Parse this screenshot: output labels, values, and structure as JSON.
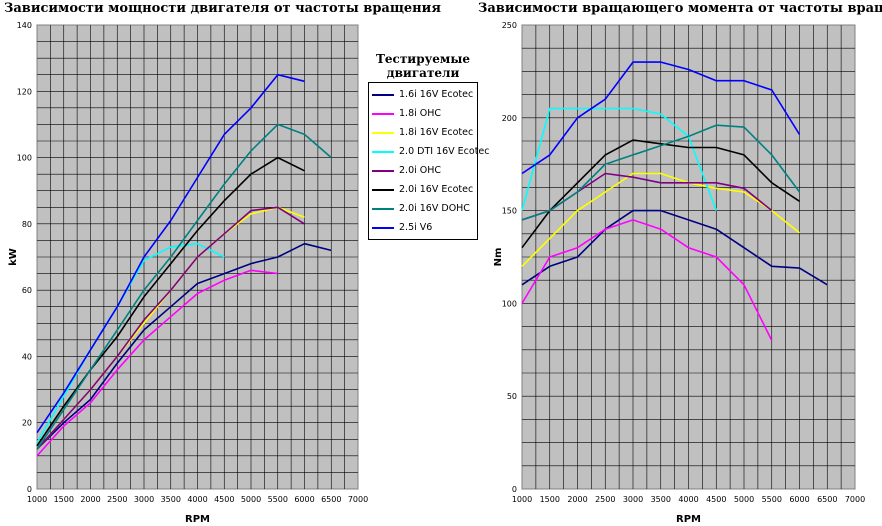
{
  "titles": {
    "left": "Зависимости мощности двигателя от частоты вращения",
    "right": "Зависимости вращающего момента от частоты вращения"
  },
  "legend": {
    "title_line1": "Тестируемые",
    "title_line2": "двигатели"
  },
  "chart_data": [
    {
      "type": "line",
      "title": "Зависимости мощности двигателя от частоты вращения",
      "xlabel": "RPM",
      "ylabel": "kW",
      "xlim": [
        1000,
        7000
      ],
      "ylim": [
        0,
        140
      ],
      "xticks": [
        1000,
        1500,
        2000,
        2500,
        3000,
        3500,
        4000,
        4500,
        5000,
        5500,
        6000,
        6500,
        7000
      ],
      "yticks": [
        0,
        20,
        40,
        60,
        80,
        100,
        120,
        140
      ],
      "grid": true,
      "background": "#c0c0c0",
      "series": [
        {
          "name": "1.6i 16V Ecotec",
          "color": "#000080",
          "x": [
            1000,
            1500,
            2000,
            2500,
            3000,
            3500,
            4000,
            4500,
            5000,
            5500,
            6000,
            6500
          ],
          "y": [
            12,
            20,
            27,
            38,
            48,
            55,
            62,
            65,
            68,
            70,
            74,
            72
          ]
        },
        {
          "name": "1.8i OHC",
          "color": "#ff00ff",
          "x": [
            1000,
            1500,
            2000,
            2500,
            3000,
            3500,
            4000,
            4500,
            5000,
            5500
          ],
          "y": [
            10,
            19,
            26,
            36,
            45,
            52,
            59,
            63,
            66,
            65
          ]
        },
        {
          "name": "1.8i 16V Ecotec",
          "color": "#ffff00",
          "x": [
            1000,
            1500,
            2000,
            2500,
            3000,
            3500,
            4000,
            4500,
            5000,
            5500,
            6000
          ],
          "y": [
            12,
            21,
            30,
            40,
            50,
            60,
            70,
            77,
            83,
            85,
            82
          ]
        },
        {
          "name": "2.0 DTI 16V Ecotec",
          "color": "#00ffff",
          "x": [
            1000,
            1500,
            2000,
            2500,
            3000,
            3500,
            4000,
            4500
          ],
          "y": [
            14,
            28,
            42,
            55,
            69,
            73,
            74,
            70
          ]
        },
        {
          "name": "2.0i OHC",
          "color": "#800080",
          "x": [
            1000,
            1500,
            2000,
            2500,
            3000,
            3500,
            4000,
            4500,
            5000,
            5500,
            6000
          ],
          "y": [
            12,
            21,
            30,
            40,
            51,
            60,
            70,
            77,
            84,
            85,
            80
          ]
        },
        {
          "name": "2.0i 16V Ecotec",
          "color": "#000000",
          "x": [
            1000,
            1500,
            2000,
            2500,
            3000,
            3500,
            4000,
            4500,
            5000,
            5500,
            6000
          ],
          "y": [
            13,
            25,
            36,
            46,
            58,
            68,
            78,
            87,
            95,
            100,
            96
          ]
        },
        {
          "name": "2.0i 16V DOHC",
          "color": "#008080",
          "x": [
            1000,
            1500,
            2000,
            2500,
            3000,
            3500,
            4000,
            4500,
            5000,
            5500,
            6000,
            6500
          ],
          "y": [
            12,
            24,
            36,
            48,
            60,
            70,
            81,
            92,
            102,
            110,
            107,
            100
          ]
        },
        {
          "name": "2.5i V6",
          "color": "#0000ff",
          "x": [
            1000,
            1500,
            2000,
            2500,
            3000,
            3500,
            4000,
            4500,
            5000,
            5500,
            6000
          ],
          "y": [
            17,
            29,
            42,
            55,
            70,
            81,
            94,
            107,
            115,
            125,
            123
          ]
        }
      ]
    },
    {
      "type": "line",
      "title": "Зависимости вращающего момента от частоты вращения",
      "xlabel": "RPM",
      "ylabel": "Nm",
      "xlim": [
        1000,
        7000
      ],
      "ylim": [
        0,
        250
      ],
      "xticks": [
        1000,
        1500,
        2000,
        2500,
        3000,
        3500,
        4000,
        4500,
        5000,
        5500,
        6000,
        6500,
        7000
      ],
      "yticks": [
        0,
        50,
        100,
        150,
        200,
        250
      ],
      "grid": true,
      "background": "#c0c0c0",
      "series": [
        {
          "name": "1.6i 16V Ecotec",
          "color": "#000080",
          "x": [
            1000,
            1500,
            2000,
            2500,
            3000,
            3500,
            4000,
            4500,
            5000,
            5500,
            6000,
            6500
          ],
          "y": [
            110,
            120,
            125,
            140,
            150,
            150,
            145,
            140,
            130,
            120,
            119,
            110
          ]
        },
        {
          "name": "1.8i OHC",
          "color": "#ff00ff",
          "x": [
            1000,
            1500,
            2000,
            2500,
            3000,
            3500,
            4000,
            4500,
            5000,
            5500
          ],
          "y": [
            100,
            125,
            130,
            140,
            145,
            140,
            130,
            125,
            110,
            80
          ]
        },
        {
          "name": "1.8i 16V Ecotec",
          "color": "#ffff00",
          "x": [
            1000,
            1500,
            2000,
            2500,
            3000,
            3500,
            4000,
            4500,
            5000,
            5500,
            6000
          ],
          "y": [
            120,
            135,
            150,
            160,
            170,
            170,
            165,
            162,
            160,
            150,
            138
          ]
        },
        {
          "name": "2.0 DTI 16V Ecotec",
          "color": "#00ffff",
          "x": [
            1000,
            1500,
            2000,
            2500,
            3000,
            3500,
            4000,
            4500
          ],
          "y": [
            150,
            205,
            205,
            205,
            205,
            202,
            190,
            150
          ]
        },
        {
          "name": "2.0i OHC",
          "color": "#800080",
          "x": [
            1000,
            1500,
            2000,
            2500,
            3000,
            3500,
            4000,
            4500,
            5000,
            5500
          ],
          "y": [
            145,
            150,
            160,
            170,
            168,
            165,
            165,
            165,
            162,
            150
          ]
        },
        {
          "name": "2.0i 16V Ecotec",
          "color": "#000000",
          "x": [
            1000,
            1500,
            2000,
            2500,
            3000,
            3500,
            4000,
            4500,
            5000,
            5500,
            6000
          ],
          "y": [
            130,
            150,
            165,
            180,
            188,
            186,
            184,
            184,
            180,
            165,
            155
          ]
        },
        {
          "name": "2.0i 16V DOHC",
          "color": "#008080",
          "x": [
            1000,
            1500,
            2000,
            2500,
            3000,
            3500,
            4000,
            4500,
            5000,
            5500,
            6000
          ],
          "y": [
            145,
            150,
            160,
            175,
            180,
            185,
            190,
            196,
            195,
            180,
            160
          ]
        },
        {
          "name": "2.5i V6",
          "color": "#0000ff",
          "x": [
            1000,
            1500,
            2000,
            2500,
            3000,
            3500,
            4000,
            4500,
            5000,
            5500,
            6000
          ],
          "y": [
            170,
            180,
            200,
            210,
            230,
            230,
            226,
            220,
            220,
            215,
            191
          ]
        }
      ]
    }
  ]
}
